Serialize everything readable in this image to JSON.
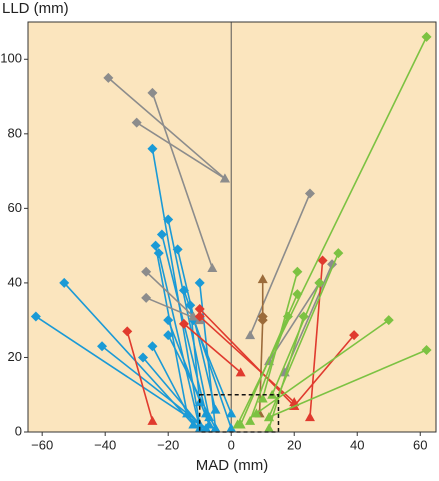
{
  "chart_data": {
    "type": "scatter",
    "x_label": "MAD (mm)",
    "y_label": "LLD (mm)",
    "xlim": [
      -64.5,
      65
    ],
    "ylim": [
      0,
      110
    ],
    "xticks": [
      {
        "value": -60,
        "label": "−60"
      },
      {
        "value": -40,
        "label": "−40"
      },
      {
        "value": -20,
        "label": "−20"
      },
      0,
      20,
      40,
      60
    ],
    "yticks": [
      0,
      20,
      40,
      60,
      80,
      100
    ],
    "background": "#fbe5be",
    "zero_line": true,
    "highlight_box": {
      "xlim": [
        -10,
        15
      ],
      "ylim": [
        0,
        10
      ]
    },
    "series": [
      {
        "color": "#1a9ad6",
        "pre_x": [
          -62,
          -53,
          -41,
          -25,
          -20,
          -22,
          -24,
          -23,
          -17,
          -15,
          -13,
          -10,
          -20,
          -25,
          -20,
          -28,
          -12
        ],
        "pre_y": [
          31,
          40,
          23,
          76,
          57,
          53,
          50,
          48,
          49,
          38,
          34,
          40,
          30,
          23,
          26,
          20,
          30
        ],
        "post_x": [
          -10,
          -12,
          -8,
          -10,
          -7,
          -8,
          -14,
          -10,
          -5,
          0,
          -10,
          -5,
          -7,
          -12,
          -5,
          -10,
          0
        ],
        "post_y": [
          2,
          2,
          1,
          2,
          4,
          5,
          5,
          1,
          6,
          1,
          8,
          1,
          2,
          2,
          1,
          2,
          5
        ]
      },
      {
        "color": "#8c8c8c",
        "pre_x": [
          -39,
          -25,
          -30,
          25,
          -27,
          -27,
          32,
          28
        ],
        "pre_y": [
          95,
          91,
          83,
          64,
          43,
          36,
          45,
          40
        ],
        "post_x": [
          -2,
          -6,
          -2,
          6,
          -12,
          -10,
          17,
          12
        ],
        "post_y": [
          68,
          44,
          68,
          26,
          31,
          30,
          16,
          19
        ]
      },
      {
        "color": "#9b6b3a",
        "pre_x": [
          10,
          10
        ],
        "pre_y": [
          31,
          30
        ],
        "post_x": [
          10,
          9
        ],
        "post_y": [
          41,
          5
        ]
      },
      {
        "color": "#e03a2e",
        "pre_x": [
          -33,
          -15,
          -10,
          -10,
          29,
          39
        ],
        "pre_y": [
          27,
          29,
          33,
          31,
          46,
          26
        ],
        "post_x": [
          -25,
          3,
          20,
          20,
          25,
          20
        ],
        "post_y": [
          3,
          16,
          7,
          8,
          4,
          7
        ]
      },
      {
        "color": "#7cc242",
        "pre_x": [
          62,
          62,
          50,
          34,
          21,
          21,
          23,
          28,
          18
        ],
        "pre_y": [
          106,
          22,
          30,
          48,
          43,
          37,
          31,
          40,
          31
        ],
        "post_x": [
          2,
          12,
          8,
          12,
          10,
          3,
          12,
          13,
          6
        ],
        "post_y": [
          2,
          4,
          5,
          4,
          9,
          2,
          1,
          10,
          3
        ]
      }
    ]
  }
}
